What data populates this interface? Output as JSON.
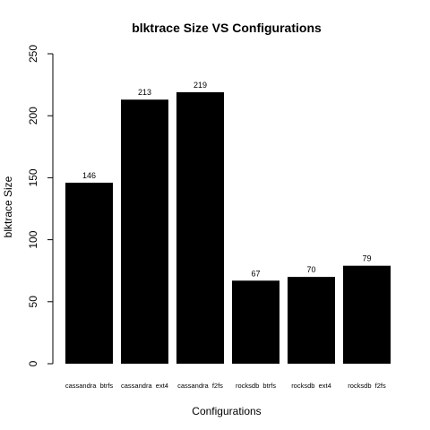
{
  "chart_data": {
    "type": "bar",
    "title": "blktrace  Size  VS  Configurations",
    "xlabel": "Configurations",
    "ylabel": "blktrace Size",
    "categories": [
      "cassandra  btrfs",
      "cassandra  ext4",
      "cassandra  f2fs",
      "rocksdb  btrfs",
      "rocksdb  ext4",
      "rocksdb  f2fs"
    ],
    "values": [
      146,
      213,
      219,
      67,
      70,
      79
    ],
    "ylim": [
      0,
      250
    ],
    "yticks": [
      0,
      50,
      100,
      150,
      200,
      250
    ],
    "bar_color": "#000000",
    "grid": false,
    "legend": "none"
  }
}
